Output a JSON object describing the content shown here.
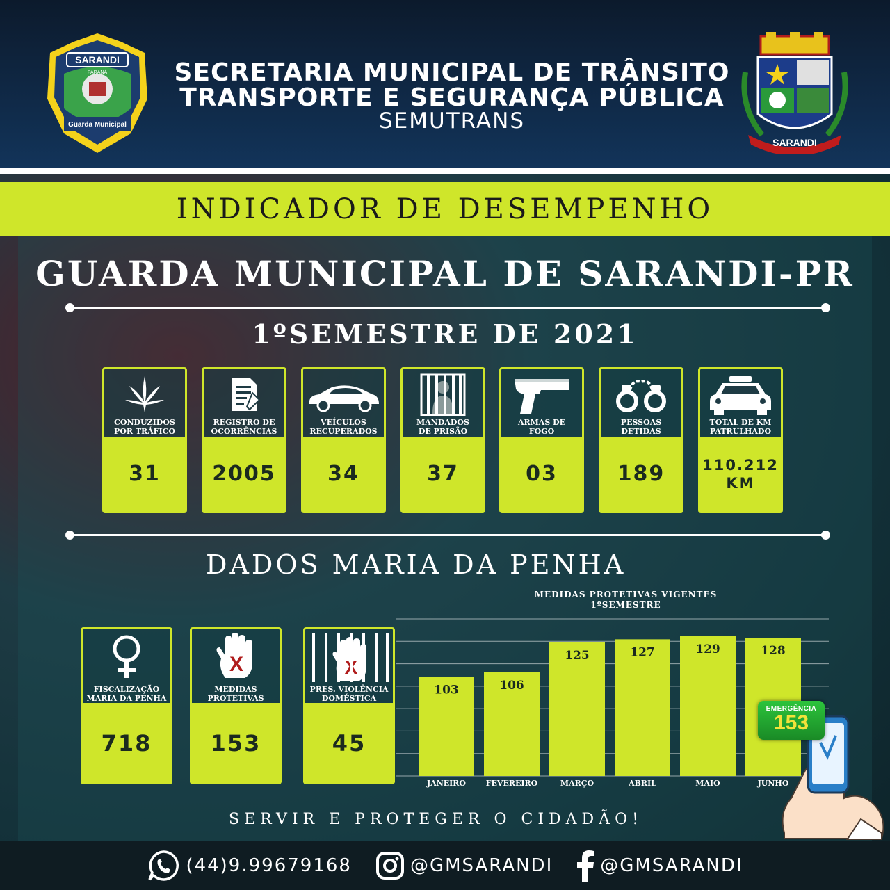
{
  "header": {
    "line1": "SECRETARIA MUNICIPAL DE TRÂNSITO",
    "line2": "TRANSPORTE E SEGURANÇA PÚBLICA",
    "line3": "SEMUTRANS",
    "left_logo": {
      "top_text": "SARANDI",
      "state": "PARANÁ",
      "bottom_text": "Guarda Municipal",
      "icon": "guard-badge-icon"
    },
    "right_logo": {
      "ribbon_text": "SARANDI",
      "icon": "coat-of-arms-icon"
    }
  },
  "indicator_title": "INDICADOR DE DESEMPENHO",
  "main_title": "GUARDA MUNICIPAL DE SARANDI-PR",
  "semester_title": "1ºSEMESTRE DE 2021",
  "stats": [
    {
      "label1": "CONDUZIDOS",
      "label2": "POR TRÁFICO",
      "value": "31",
      "icon": "cannabis-leaf-icon"
    },
    {
      "label1": "REGISTRO DE",
      "label2": "OCORRÊNCIAS",
      "value": "2005",
      "icon": "document-icon"
    },
    {
      "label1": "VEÍCULOS",
      "label2": "RECUPERADOS",
      "value": "34",
      "icon": "car-icon"
    },
    {
      "label1": "MANDADOS",
      "label2": "DE PRISÃO",
      "value": "37",
      "icon": "prison-bars-icon"
    },
    {
      "label1": "ARMAS DE",
      "label2": "FOGO",
      "value": "03",
      "icon": "pistol-icon"
    },
    {
      "label1": "PESSOAS",
      "label2": "DETIDAS",
      "value": "189",
      "icon": "handcuffs-icon"
    },
    {
      "label1": "TOTAL DE KM",
      "label2": "PATRULHADO",
      "value1": "110.212",
      "value2": "KM",
      "icon": "police-car-icon"
    }
  ],
  "maria_penha_title": "DADOS  MARIA DA PENHA",
  "maria_penha": [
    {
      "label1": "FISCALIZAÇÃO",
      "label2": "MARIA DA PENHA",
      "value": "718",
      "icon": "female-symbol-icon"
    },
    {
      "label1": "MEDIDAS",
      "label2": "PROTETIVAS",
      "value": "153",
      "icon": "stop-hand-icon"
    },
    {
      "label1": "PRES. VIOLÊNCIA",
      "label2": "DOMÉSTICA",
      "value": "45",
      "icon": "hand-behind-bars-icon"
    }
  ],
  "chart_data": {
    "type": "bar",
    "title_line1": "MEDIDAS PROTETIVAS VIGENTES",
    "title_line2": "1ºSEMESTRE",
    "categories": [
      "JANEIRO",
      "FEVEREIRO",
      "MARÇO",
      "ABRIL",
      "MAIO",
      "JUNHO"
    ],
    "values": [
      103,
      106,
      125,
      127,
      129,
      128
    ],
    "color": "#cfe62a",
    "grid": true
  },
  "emergency": {
    "label": "EMERGÊNCIA",
    "number": "153"
  },
  "slogan": "SERVIR E PROTEGER O CIDADÃO!",
  "footer": {
    "phone": "(44)9.99679168",
    "instagram": "@GMSARANDI",
    "facebook": "@GMSARANDI"
  },
  "colors": {
    "accent": "#cfe62a",
    "header_bg": "#12345a",
    "footer_bg": "#0f1c22"
  }
}
